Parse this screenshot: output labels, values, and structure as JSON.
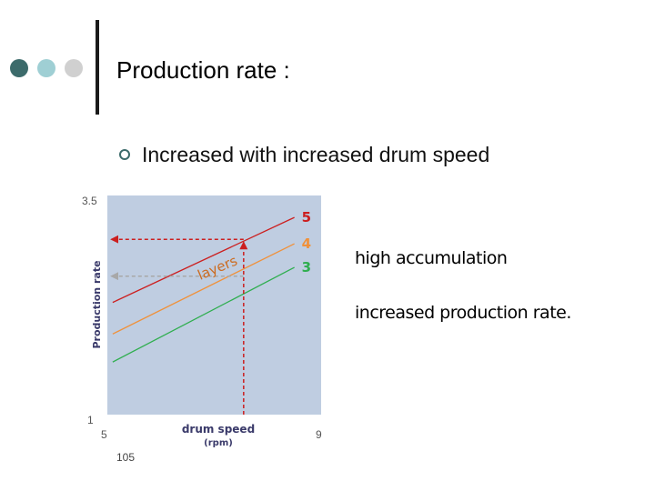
{
  "slide": {
    "title": "Production rate :",
    "bullet": "Increased with increased drum speed",
    "footer_number": "105",
    "dot_colors": [
      "#3c6b6b",
      "#9fcfd4",
      "#d0d0d0"
    ]
  },
  "notes": {
    "first": "high accumulation",
    "second": "increased production rate."
  },
  "chart_data": {
    "type": "line",
    "title": "",
    "xlabel": "drum speed",
    "xlabel_unit": "(rpm)",
    "ylabel": "Production rate",
    "xlim": [
      5,
      9
    ],
    "ylim": [
      1,
      3.5
    ],
    "x_ticks": [
      "5",
      "9"
    ],
    "y_ticks": [
      "1",
      "3.5"
    ],
    "lines_label": "layers",
    "background": "#bfcde1",
    "series": [
      {
        "name": "5",
        "color": "#cc1f1f",
        "x": [
          5.1,
          8.5
        ],
        "y": [
          2.28,
          3.25
        ]
      },
      {
        "name": "4",
        "color": "#f0913a",
        "x": [
          5.1,
          8.5
        ],
        "y": [
          1.92,
          2.95
        ]
      },
      {
        "name": "3",
        "color": "#2fae4f",
        "x": [
          5.1,
          8.5
        ],
        "y": [
          1.6,
          2.68
        ]
      }
    ],
    "reference_lines": [
      {
        "style": "dashed",
        "color": "#cc1f1f",
        "x": 7.55,
        "y": 3.0
      },
      {
        "style": "dashed",
        "color": "#a8a8a8",
        "y": 2.58
      }
    ]
  }
}
